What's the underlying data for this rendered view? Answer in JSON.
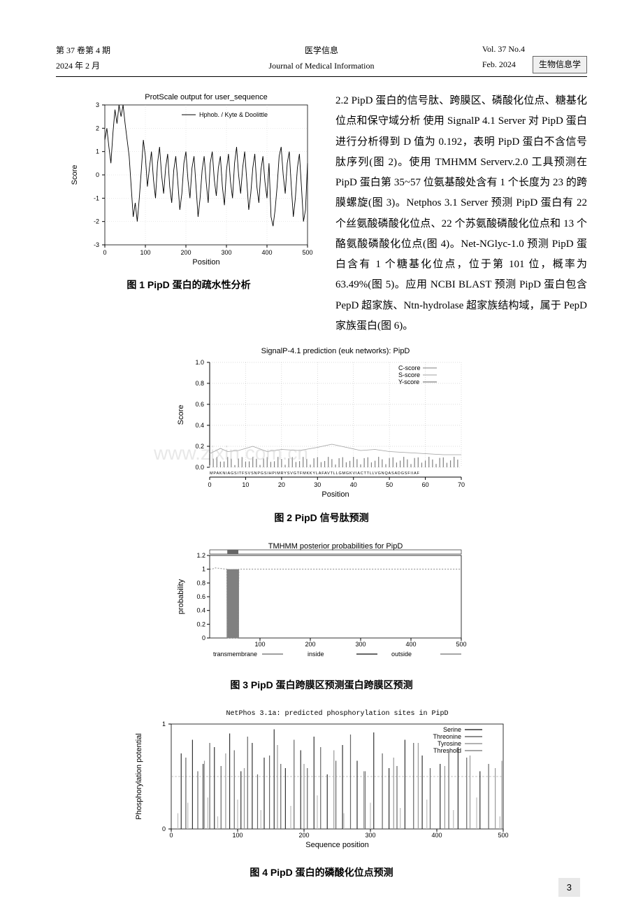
{
  "header": {
    "volume_issue_cn": "第 37 卷第 4 期",
    "date_cn": "2024 年 2 月",
    "journal_cn": "医学信息",
    "journal_en": "Journal of Medical Information",
    "volume_issue_en": "Vol. 37  No.4",
    "date_en": "Feb. 2024",
    "tag": "生物信息学"
  },
  "paragraph": {
    "heading": "2.2 PipD 蛋白的信号肽、跨膜区、磷酸化位点、糖基化位点和保守域分析",
    "body": "  使用 SignalP 4.1 Server 对 PipD 蛋白进行分析得到 D 值为 0.192，表明 PipD 蛋白不含信号肽序列(图 2)。使用 TMHMM Serverv.2.0 工具预测在 PipD 蛋白第 35~57 位氨基酸处含有 1 个长度为 23 的跨膜螺旋(图 3)。Netphos 3.1 Server 预测 PipD 蛋白有 22 个丝氨酸磷酸化位点、22 个苏氨酸磷酸化位点和 13 个酪氨酸磷酸化位点(图 4)。Net-NGlyc-1.0 预测 PipD 蛋白含有 1 个糖基化位点，位于第 101 位，概率为 63.49%(图 5)。应用 NCBI BLAST 预测 PipD 蛋白包含 PepD 超家族、Ntn-hydrolase 超家族结构域，属于 PepD 家族蛋白(图 6)。"
  },
  "fig1": {
    "caption": "图 1  PipD 蛋白的疏水性分析",
    "title": "ProtScale output for user_sequence",
    "legend": "Hphob. / Kyte & Doolittle",
    "xlabel": "Position",
    "ylabel": "Score",
    "xlim": [
      0,
      500
    ],
    "xtick_step": 100,
    "ylim": [
      -3,
      3
    ],
    "ytick_step": 1,
    "line_color": "#000000",
    "data": [
      [
        0,
        1.5
      ],
      [
        5,
        2.0
      ],
      [
        10,
        1.2
      ],
      [
        15,
        0.5
      ],
      [
        20,
        1.8
      ],
      [
        25,
        2.8
      ],
      [
        30,
        2.2
      ],
      [
        35,
        3.0
      ],
      [
        40,
        2.5
      ],
      [
        45,
        3.0
      ],
      [
        50,
        2.2
      ],
      [
        55,
        1.5
      ],
      [
        60,
        0.8
      ],
      [
        65,
        -0.5
      ],
      [
        70,
        -1.8
      ],
      [
        75,
        -1.2
      ],
      [
        80,
        -2.0
      ],
      [
        85,
        -1.0
      ],
      [
        90,
        0.2
      ],
      [
        95,
        1.5
      ],
      [
        100,
        0.8
      ],
      [
        105,
        -0.5
      ],
      [
        110,
        0.3
      ],
      [
        115,
        1.0
      ],
      [
        120,
        -0.2
      ],
      [
        125,
        -1.0
      ],
      [
        130,
        0.5
      ],
      [
        135,
        1.2
      ],
      [
        140,
        0.0
      ],
      [
        145,
        -0.8
      ],
      [
        150,
        0.3
      ],
      [
        155,
        0.9
      ],
      [
        160,
        -0.5
      ],
      [
        165,
        -1.2
      ],
      [
        170,
        0.2
      ],
      [
        175,
        0.8
      ],
      [
        180,
        -0.3
      ],
      [
        185,
        -1.5
      ],
      [
        190,
        -0.8
      ],
      [
        195,
        0.5
      ],
      [
        200,
        1.0
      ],
      [
        205,
        -0.2
      ],
      [
        210,
        -1.0
      ],
      [
        215,
        0.3
      ],
      [
        220,
        0.8
      ],
      [
        225,
        -0.5
      ],
      [
        230,
        -1.8
      ],
      [
        235,
        -1.0
      ],
      [
        240,
        0.2
      ],
      [
        245,
        0.8
      ],
      [
        250,
        -0.3
      ],
      [
        255,
        -1.2
      ],
      [
        260,
        0.5
      ],
      [
        265,
        1.0
      ],
      [
        270,
        -0.2
      ],
      [
        275,
        -0.9
      ],
      [
        280,
        0.3
      ],
      [
        285,
        0.8
      ],
      [
        290,
        -0.5
      ],
      [
        295,
        -1.3
      ],
      [
        300,
        0.2
      ],
      [
        305,
        0.9
      ],
      [
        310,
        -0.3
      ],
      [
        315,
        -1.0
      ],
      [
        320,
        0.5
      ],
      [
        325,
        1.2
      ],
      [
        330,
        0.0
      ],
      [
        335,
        -0.8
      ],
      [
        340,
        0.3
      ],
      [
        345,
        1.0
      ],
      [
        350,
        -0.2
      ],
      [
        355,
        -1.5
      ],
      [
        360,
        -0.8
      ],
      [
        365,
        0.3
      ],
      [
        370,
        0.9
      ],
      [
        375,
        -0.5
      ],
      [
        380,
        -1.2
      ],
      [
        385,
        0.2
      ],
      [
        390,
        0.8
      ],
      [
        395,
        -0.3
      ],
      [
        400,
        -1.0
      ],
      [
        405,
        0.5
      ],
      [
        410,
        -1.8
      ],
      [
        415,
        -2.2
      ],
      [
        420,
        -1.5
      ],
      [
        425,
        -0.5
      ],
      [
        430,
        0.8
      ],
      [
        435,
        1.2
      ],
      [
        440,
        0.0
      ],
      [
        445,
        -0.8
      ],
      [
        450,
        0.5
      ],
      [
        455,
        1.0
      ],
      [
        460,
        -0.5
      ],
      [
        465,
        -1.8
      ],
      [
        470,
        -1.0
      ],
      [
        475,
        0.3
      ],
      [
        480,
        0.9
      ],
      [
        485,
        -0.5
      ],
      [
        490,
        -2.0
      ],
      [
        495,
        -1.5
      ],
      [
        500,
        0.5
      ]
    ]
  },
  "fig2": {
    "caption": "图 2  PipD 信号肽预测",
    "title": "SignalP-4.1 prediction (euk networks): PipD",
    "xlabel": "Position",
    "ylabel": "Score",
    "xlim": [
      0,
      70
    ],
    "xtick_step": 10,
    "ylim": [
      0,
      1.0
    ],
    "ytick_step": 0.2,
    "legend": [
      "C-score",
      "S-score",
      "Y-score"
    ],
    "seq": "MPAKNIAGSITFSVSNPGSIHPIMRYSVGTFMKKYLAFAVTLLGMGKVIACTTLLVGNQASADGSFIIAF",
    "grid_color": "#888888",
    "cscore_color": "#808080",
    "sscore_color": "#a0a0a0",
    "yscore_color": "#606060",
    "sscore": [
      [
        0,
        0.13
      ],
      [
        3,
        0.18
      ],
      [
        5,
        0.15
      ],
      [
        8,
        0.16
      ],
      [
        12,
        0.2
      ],
      [
        16,
        0.15
      ],
      [
        20,
        0.17
      ],
      [
        25,
        0.16
      ],
      [
        30,
        0.19
      ],
      [
        34,
        0.22
      ],
      [
        38,
        0.19
      ],
      [
        42,
        0.16
      ],
      [
        46,
        0.17
      ],
      [
        50,
        0.15
      ],
      [
        55,
        0.14
      ],
      [
        60,
        0.13
      ],
      [
        65,
        0.12
      ],
      [
        70,
        0.12
      ]
    ]
  },
  "fig3": {
    "caption": "图 3  PipD 蛋白跨膜区预测蛋白跨膜区预测",
    "title": "TMHMM posterior probabilities for PipD",
    "xlabel": "",
    "ylabel": "probability",
    "xlim": [
      0,
      500
    ],
    "xtick_step": 100,
    "ylim": [
      0,
      1.2
    ],
    "ytick_step": 0.2,
    "legend": [
      "transmembrane",
      "inside",
      "outside"
    ],
    "tm_color": "#808080",
    "inside_color": "#333333",
    "outside_color": "#888888",
    "barbox_color": "#666666",
    "tm_bars": [
      [
        35,
        57
      ]
    ],
    "inside_line": [
      [
        0,
        0
      ],
      [
        34,
        0
      ],
      [
        35,
        1.0
      ],
      [
        57,
        1.0
      ],
      [
        58,
        0
      ],
      [
        500,
        0
      ]
    ],
    "outside_line": [
      [
        0,
        1.0
      ],
      [
        5,
        1.0
      ],
      [
        10,
        1.02
      ],
      [
        34,
        1.0
      ],
      [
        35,
        0
      ],
      [
        57,
        0
      ],
      [
        58,
        1.0
      ],
      [
        500,
        1.0
      ]
    ]
  },
  "fig4": {
    "caption": "图 4  PipD 蛋白的磷酸化位点预测",
    "title": "NetPhos 3.1a: predicted phosphorylation sites in PipD",
    "xlabel": "Sequence position",
    "ylabel": "Phosphorylation potential",
    "xlim": [
      0,
      500
    ],
    "xtick_step": 100,
    "ylim": [
      0,
      1
    ],
    "ytick_step": 1,
    "legend": [
      "Serine",
      "Threonine",
      "Tyrosine",
      "Threshold"
    ],
    "threshold": 0.5,
    "threshold_color": "#888888",
    "ser_color": "#333333",
    "thr_color": "#666666",
    "tyr_color": "#999999",
    "ser": [
      [
        15,
        0.72
      ],
      [
        32,
        0.85
      ],
      [
        48,
        0.62
      ],
      [
        65,
        0.78
      ],
      [
        88,
        0.91
      ],
      [
        105,
        0.55
      ],
      [
        122,
        0.82
      ],
      [
        140,
        0.68
      ],
      [
        155,
        0.95
      ],
      [
        172,
        0.58
      ],
      [
        195,
        0.75
      ],
      [
        215,
        0.88
      ],
      [
        235,
        0.52
      ],
      [
        258,
        0.8
      ],
      [
        280,
        0.65
      ],
      [
        305,
        0.92
      ],
      [
        328,
        0.58
      ],
      [
        352,
        0.85
      ],
      [
        378,
        0.7
      ],
      [
        405,
        0.62
      ],
      [
        432,
        0.78
      ],
      [
        465,
        0.55
      ]
    ],
    "thr": [
      [
        22,
        0.68
      ],
      [
        40,
        0.55
      ],
      [
        58,
        0.82
      ],
      [
        75,
        0.6
      ],
      [
        95,
        0.75
      ],
      [
        115,
        0.88
      ],
      [
        130,
        0.52
      ],
      [
        148,
        0.7
      ],
      [
        165,
        0.62
      ],
      [
        185,
        0.85
      ],
      [
        205,
        0.58
      ],
      [
        225,
        0.78
      ],
      [
        248,
        0.65
      ],
      [
        270,
        0.9
      ],
      [
        292,
        0.55
      ],
      [
        318,
        0.72
      ],
      [
        340,
        0.6
      ],
      [
        365,
        0.82
      ],
      [
        390,
        0.58
      ],
      [
        418,
        0.75
      ],
      [
        445,
        0.68
      ],
      [
        478,
        0.62
      ]
    ],
    "tyr": [
      [
        50,
        0.65
      ],
      [
        82,
        0.72
      ],
      [
        110,
        0.58
      ],
      [
        160,
        0.8
      ],
      [
        200,
        0.62
      ],
      [
        245,
        0.75
      ],
      [
        290,
        0.55
      ],
      [
        335,
        0.68
      ],
      [
        372,
        0.82
      ],
      [
        412,
        0.6
      ],
      [
        450,
        0.7
      ],
      [
        488,
        0.58
      ],
      [
        498,
        0.65
      ]
    ],
    "low": [
      [
        10,
        0.15
      ],
      [
        25,
        0.25
      ],
      [
        55,
        0.3
      ],
      [
        70,
        0.12
      ],
      [
        100,
        0.28
      ],
      [
        135,
        0.18
      ],
      [
        180,
        0.22
      ],
      [
        220,
        0.32
      ],
      [
        260,
        0.15
      ],
      [
        300,
        0.25
      ],
      [
        345,
        0.2
      ],
      [
        385,
        0.28
      ],
      [
        425,
        0.18
      ],
      [
        460,
        0.3
      ],
      [
        495,
        0.12
      ]
    ]
  },
  "watermark": "www.zixin.com.cn",
  "page_num": "3"
}
